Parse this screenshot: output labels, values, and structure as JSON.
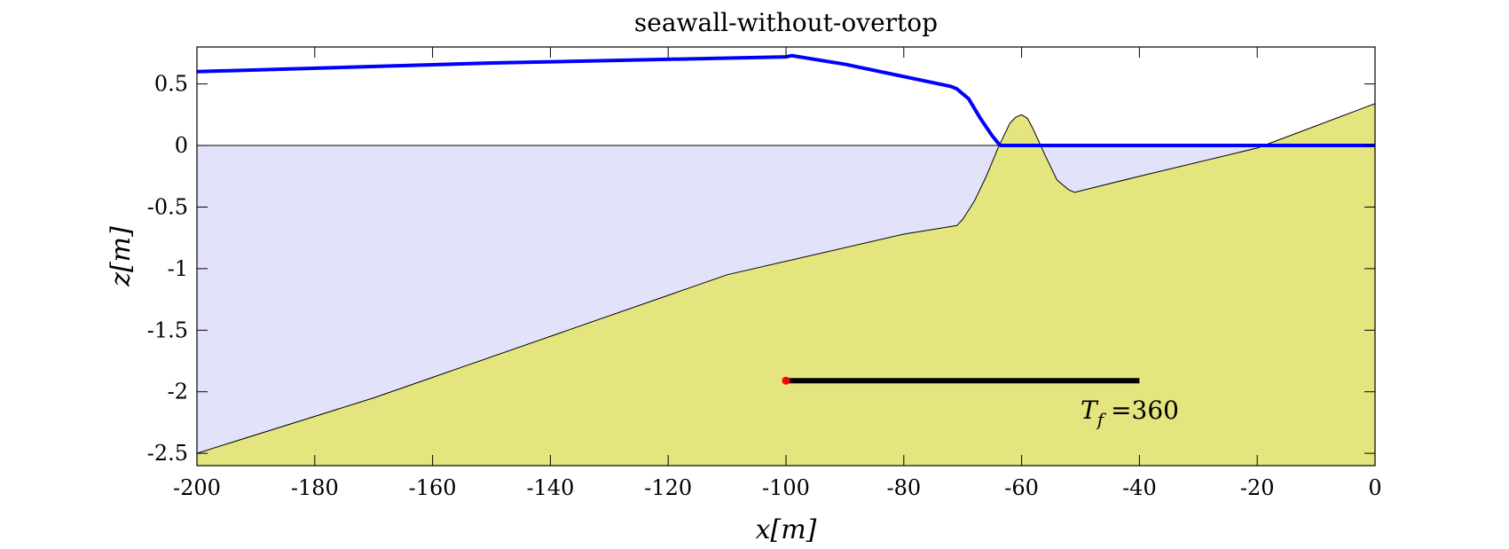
{
  "chart_data": {
    "type": "area",
    "title": "seawall-without-overtop",
    "xlabel": "x[m]",
    "ylabel": "z[m]",
    "xlim": [
      -200,
      0
    ],
    "ylim": [
      -2.6,
      0.8
    ],
    "xticks": [
      -200,
      -180,
      -160,
      -140,
      -120,
      -100,
      -80,
      -60,
      -40,
      -20,
      0
    ],
    "yticks": [
      -2.5,
      -2,
      -1.5,
      -1,
      -0.5,
      0,
      0.5
    ],
    "xtick_labels": [
      "-200",
      "-180",
      "-160",
      "-140",
      "-120",
      "-100",
      "-80",
      "-60",
      "-40",
      "-20",
      "0"
    ],
    "ytick_labels": [
      "-2.5",
      "-2",
      "-1.5",
      "-1",
      "-0.5",
      "0",
      "0.5"
    ],
    "grid": false,
    "still_water_level": 0,
    "bed": {
      "x": [
        -200,
        -170,
        -140,
        -110,
        -80,
        -71,
        -70,
        -68,
        -66,
        -64,
        -62,
        -61,
        -60,
        -59,
        -58,
        -56,
        -54,
        -52,
        -51,
        -40,
        -20,
        -10,
        0
      ],
      "z": [
        -2.5,
        -2.05,
        -1.55,
        -1.05,
        -0.72,
        -0.65,
        -0.6,
        -0.45,
        -0.25,
        -0.02,
        0.18,
        0.23,
        0.25,
        0.22,
        0.13,
        -0.08,
        -0.28,
        -0.36,
        -0.38,
        -0.25,
        -0.02,
        0.16,
        0.34
      ],
      "color": "#e5e57f"
    },
    "water": {
      "color": "#e2e3fa"
    },
    "surface": {
      "name": "",
      "x": [
        -200,
        -150,
        -100,
        -99,
        -90,
        -80,
        -72,
        -71,
        -69,
        -67,
        -65,
        -64,
        -63.5,
        -60,
        -40,
        -20,
        0
      ],
      "z": [
        0.6,
        0.67,
        0.72,
        0.73,
        0.66,
        0.56,
        0.48,
        0.46,
        0.38,
        0.22,
        0.08,
        0.02,
        0.0,
        0.0,
        0.0,
        0.0,
        0.0
      ],
      "color": "#0000ff"
    },
    "timebar": {
      "x_start": -100,
      "x_end": -40,
      "z": -1.91,
      "color": "#000000",
      "marker_color": "#ff0000"
    },
    "annotation": {
      "text": "=360",
      "symbol": "T",
      "subscript": "f",
      "x": -50,
      "z": -2.22
    }
  }
}
